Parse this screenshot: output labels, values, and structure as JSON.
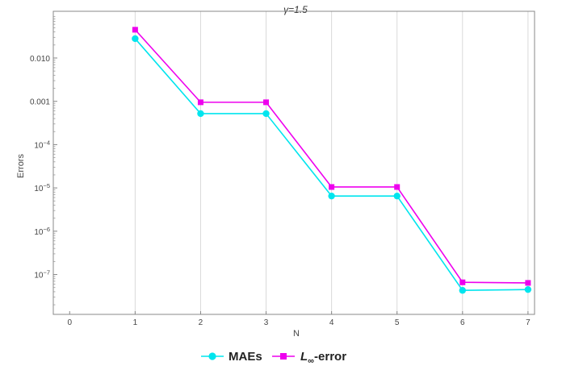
{
  "chart_data": {
    "type": "line",
    "title": "γ=1.5",
    "xlabel": "N",
    "ylabel": "Errors",
    "yscale": "log",
    "xlim": [
      -0.25,
      7.1
    ],
    "xticks": [
      0,
      1,
      2,
      3,
      4,
      5,
      6,
      7
    ],
    "ylim": [
      1.2e-08,
      0.12
    ],
    "yticks": [
      {
        "value": 1e-07,
        "mantissa": "10",
        "exp": "−7"
      },
      {
        "value": 1e-06,
        "mantissa": "10",
        "exp": "−6"
      },
      {
        "value": 1e-05,
        "mantissa": "10",
        "exp": "−5"
      },
      {
        "value": 0.0001,
        "mantissa": "10",
        "exp": "−4"
      },
      {
        "value": 0.001,
        "label": "0.001"
      },
      {
        "value": 0.01,
        "label": "0.010"
      }
    ],
    "grid": "vertical",
    "legend_position": "bottom",
    "series": [
      {
        "name": "MAEs",
        "color": "#00e5ee",
        "marker": "circle",
        "x": [
          1,
          2,
          3,
          4,
          5,
          6,
          7
        ],
        "values": [
          0.028,
          0.00052,
          0.00052,
          6.5e-06,
          6.5e-06,
          4.3e-08,
          4.5e-08
        ]
      },
      {
        "name": "L∞-error",
        "label_main": "L",
        "label_sub": "∞",
        "label_suffix": "-error",
        "color": "#ee00ee",
        "marker": "square",
        "x": [
          1,
          2,
          3,
          4,
          5,
          6,
          7
        ],
        "values": [
          0.045,
          0.00095,
          0.00095,
          1.05e-05,
          1.05e-05,
          6.6e-08,
          6.4e-08
        ]
      }
    ]
  }
}
